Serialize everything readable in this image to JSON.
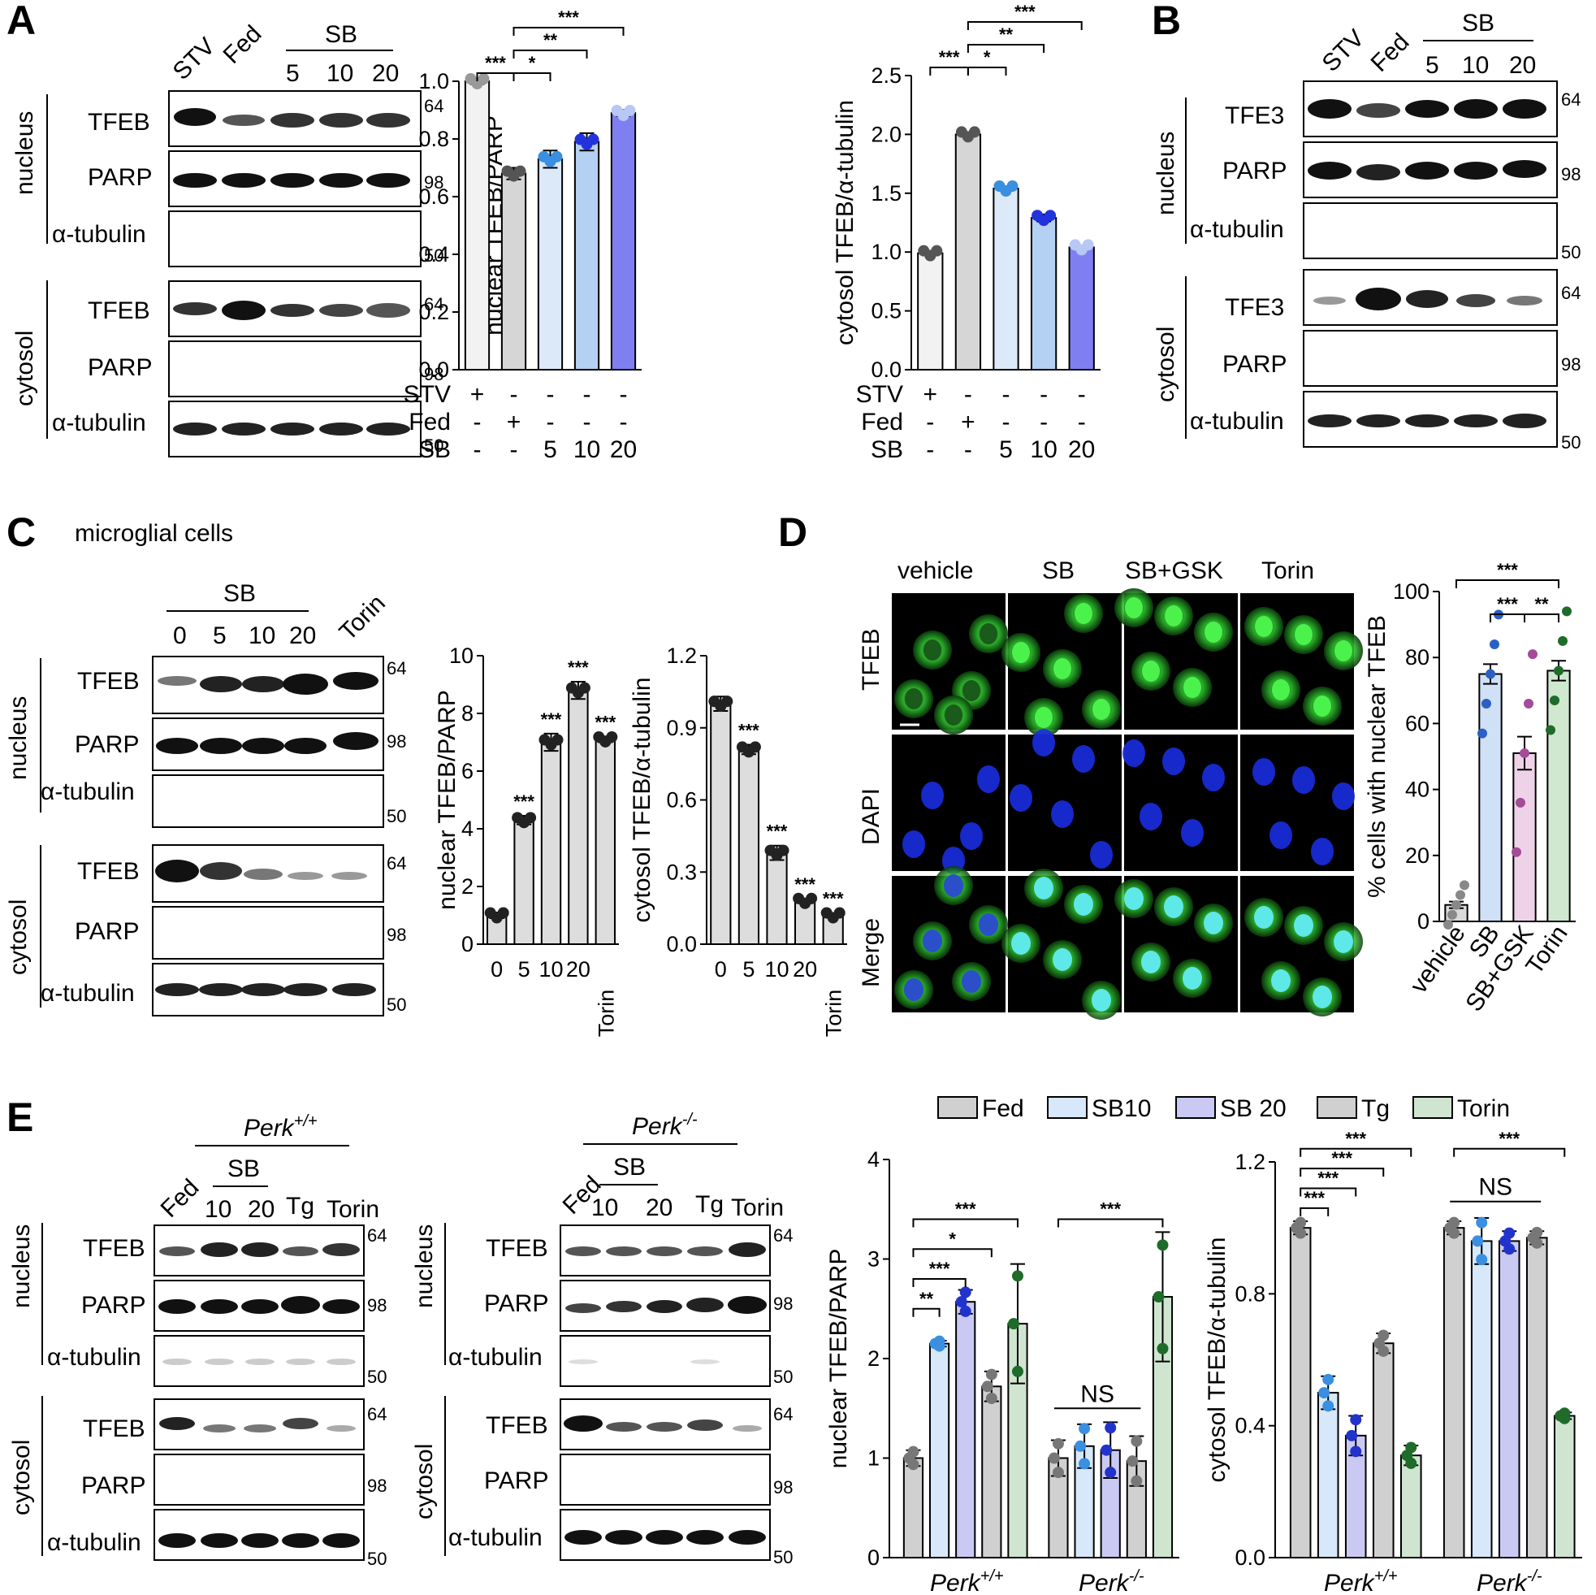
{
  "panels": {
    "A": "A",
    "B": "B",
    "C": "C",
    "D": "D",
    "E": "E"
  },
  "mw": {
    "m64": "64",
    "m98": "98",
    "m50": "50"
  },
  "regions": {
    "nucleus": "nucleus",
    "cytosol": "cytosol"
  },
  "proteins": {
    "tfeb": "TFEB",
    "parp": "PARP",
    "tubulin": "α-tubulin",
    "tfe3": "TFE3"
  },
  "lanes": {
    "A": [
      "STV",
      "Fed",
      "5",
      "10",
      "20"
    ],
    "A_group": "SB",
    "B": [
      "STV",
      "Fed",
      "5",
      "10",
      "20"
    ],
    "B_group": "SB",
    "C": [
      "0",
      "5",
      "10",
      "20",
      "Torin"
    ],
    "C_group": "SB",
    "E1": [
      "Fed",
      "10",
      "20",
      "Tg",
      "Torin"
    ],
    "E1_group": "SB",
    "E1_genotype": "Perk+/+",
    "E2": [
      "Fed",
      "10",
      "20",
      "Tg",
      "Torin"
    ],
    "E2_group": "SB",
    "E2_genotype": "Perk-/-"
  },
  "C_title": "microglial cells",
  "D": {
    "cols": [
      "vehicle",
      "SB",
      "SB+GSK",
      "Torin"
    ],
    "rows": [
      "TFEB",
      "DAPI",
      "Merge"
    ]
  },
  "E_legend": [
    "Fed",
    "SB10",
    "SB 20",
    "Tg",
    "Torin"
  ],
  "E_groups": [
    "Perk+/+",
    "Perk-/-"
  ],
  "ns": "NS",
  "chart_data": [
    {
      "id": "A_nuclear",
      "type": "bar",
      "ylabel": "nuclear TFEB/PARP",
      "ylim": [
        0,
        1.0
      ],
      "yticks": [
        "0.0",
        "0.2",
        "0.4",
        "0.6",
        "0.8",
        "1.0"
      ],
      "values": [
        1.0,
        0.68,
        0.73,
        0.79,
        0.89
      ],
      "errors": [
        0.01,
        0.02,
        0.03,
        0.03,
        0.01
      ],
      "colors": [
        "#f2f2f2",
        "#d6d6d6",
        "#dbe9f9",
        "#b4d0f3",
        "#7f7ff2"
      ],
      "point_colors": [
        "#999999",
        "#555555",
        "#3a8fe0",
        "#2233dd",
        "#b8c8f4"
      ],
      "cond_labels": [
        "STV",
        "Fed",
        "SB"
      ],
      "cond_rows": [
        [
          "+",
          "-",
          "-",
          "-",
          "-"
        ],
        [
          "-",
          "+",
          "-",
          "-",
          "-"
        ],
        [
          "-",
          "-",
          "5",
          "10",
          "20"
        ]
      ],
      "sig": [
        "***",
        "*",
        "**",
        "***"
      ]
    },
    {
      "id": "A_cytosol",
      "type": "bar",
      "ylabel": "cytosol TFEB/α-tubulin",
      "ylim": [
        0,
        2.5
      ],
      "yticks": [
        "0.0",
        "0.5",
        "1.0",
        "1.5",
        "2.0",
        "2.5"
      ],
      "values": [
        0.99,
        2.0,
        1.54,
        1.29,
        1.04
      ],
      "errors": [
        0.02,
        0.02,
        0.02,
        0.03,
        0.01
      ],
      "colors": [
        "#f2f2f2",
        "#d6d6d6",
        "#dbe9f9",
        "#b4d0f3",
        "#7f7ff2"
      ],
      "point_colors": [
        "#555555",
        "#555555",
        "#3a8fe0",
        "#2233dd",
        "#b8c8f4"
      ],
      "cond_labels": [
        "STV",
        "Fed",
        "SB"
      ],
      "cond_rows": [
        [
          "+",
          "-",
          "-",
          "-",
          "-"
        ],
        [
          "-",
          "+",
          "-",
          "-",
          "-"
        ],
        [
          "-",
          "-",
          "5",
          "10",
          "20"
        ]
      ],
      "sig": [
        "***",
        "*",
        "**",
        "***"
      ]
    },
    {
      "id": "C_nuclear",
      "type": "bar",
      "ylabel": "nuclear TFEB/PARP",
      "ylim": [
        0,
        10
      ],
      "yticks": [
        "0",
        "2",
        "4",
        "6",
        "8",
        "10"
      ],
      "categories": [
        "0",
        "5",
        "10",
        "20",
        "Torin"
      ],
      "values": [
        1.0,
        4.3,
        7.0,
        8.8,
        7.1
      ],
      "errors": [
        0.1,
        0.15,
        0.3,
        0.3,
        0.1
      ],
      "sig": [
        "",
        "***",
        "***",
        "***",
        "***"
      ]
    },
    {
      "id": "C_cytosol",
      "type": "bar",
      "ylabel": "cytosol TFEB/α-tubulin",
      "ylim": [
        0,
        1.2
      ],
      "yticks": [
        "0.0",
        "0.3",
        "0.6",
        "0.9",
        "1.2"
      ],
      "categories": [
        "0",
        "5",
        "10",
        "20",
        "Torin"
      ],
      "values": [
        1.0,
        0.81,
        0.38,
        0.18,
        0.12
      ],
      "errors": [
        0.03,
        0.02,
        0.03,
        0.01,
        0.01
      ],
      "sig": [
        "",
        "***",
        "***",
        "***",
        "***"
      ]
    },
    {
      "id": "D_bar",
      "type": "bar",
      "ylabel": "% cells with nuclear TFEB",
      "ylim": [
        0,
        100
      ],
      "yticks": [
        "0",
        "20",
        "40",
        "60",
        "80",
        "100"
      ],
      "categories": [
        "vehicle",
        "SB",
        "SB+GSK",
        "Torin"
      ],
      "values": [
        5,
        75,
        51,
        76
      ],
      "errors": [
        1,
        3,
        5,
        3
      ],
      "colors": [
        "#d9d9d9",
        "#cfe0f7",
        "#eed3e8",
        "#cfe8cf"
      ],
      "point_colors": [
        "#888888",
        "#2a5fc4",
        "#a44b9a",
        "#1f6b2a"
      ],
      "sig": [
        "***",
        "***",
        "**"
      ]
    },
    {
      "id": "E_nuclear",
      "type": "bar",
      "ylabel": "nuclear TFEB/PARP",
      "ylim": [
        0,
        4
      ],
      "yticks": [
        "0",
        "1",
        "2",
        "3",
        "4"
      ],
      "groups": [
        "Perk+/+",
        "Perk-/-"
      ],
      "series": [
        {
          "name": "Fed",
          "values": [
            1.0,
            1.0
          ],
          "errors": [
            0.08,
            0.18
          ]
        },
        {
          "name": "SB10",
          "values": [
            2.15,
            1.12
          ],
          "errors": [
            0.03,
            0.22
          ]
        },
        {
          "name": "SB 20",
          "values": [
            2.57,
            1.08
          ],
          "errors": [
            0.12,
            0.28
          ]
        },
        {
          "name": "Tg",
          "values": [
            1.72,
            0.97
          ],
          "errors": [
            0.15,
            0.25
          ]
        },
        {
          "name": "Torin",
          "values": [
            2.35,
            2.62
          ],
          "errors": [
            0.6,
            0.65
          ]
        }
      ],
      "colors": [
        "#d0d0d0",
        "#d6e8fa",
        "#c9c9f4",
        "#d0d0d0",
        "#cfe5cf"
      ],
      "point_colors": [
        "#777777",
        "#3a8fe0",
        "#2233cc",
        "#777777",
        "#1f6b2a"
      ],
      "sig": [
        "**",
        "***",
        "*",
        "***",
        "***"
      ]
    },
    {
      "id": "E_cytosol",
      "type": "bar",
      "ylabel": "cytosol TFEB/α-tubulin",
      "ylim": [
        0,
        1.2
      ],
      "yticks": [
        "0.0",
        "0.4",
        "0.8",
        "1.2"
      ],
      "groups": [
        "Perk+/+",
        "Perk-/-"
      ],
      "series": [
        {
          "name": "Fed",
          "values": [
            1.0,
            1.0
          ],
          "errors": [
            0.02,
            0.02
          ]
        },
        {
          "name": "SB10",
          "values": [
            0.5,
            0.96
          ],
          "errors": [
            0.05,
            0.07
          ]
        },
        {
          "name": "SB 20",
          "values": [
            0.37,
            0.96
          ],
          "errors": [
            0.06,
            0.03
          ]
        },
        {
          "name": "Tg",
          "values": [
            0.65,
            0.97
          ],
          "errors": [
            0.03,
            0.02
          ]
        },
        {
          "name": "Torin",
          "values": [
            0.31,
            0.43
          ],
          "errors": [
            0.03,
            0.01
          ]
        }
      ],
      "colors": [
        "#d0d0d0",
        "#d6e8fa",
        "#c9c9f4",
        "#d0d0d0",
        "#cfe5cf"
      ],
      "point_colors": [
        "#777777",
        "#3a8fe0",
        "#2233cc",
        "#777777",
        "#1f6b2a"
      ],
      "sig": [
        "***",
        "***",
        "***",
        "***",
        "***"
      ]
    }
  ]
}
